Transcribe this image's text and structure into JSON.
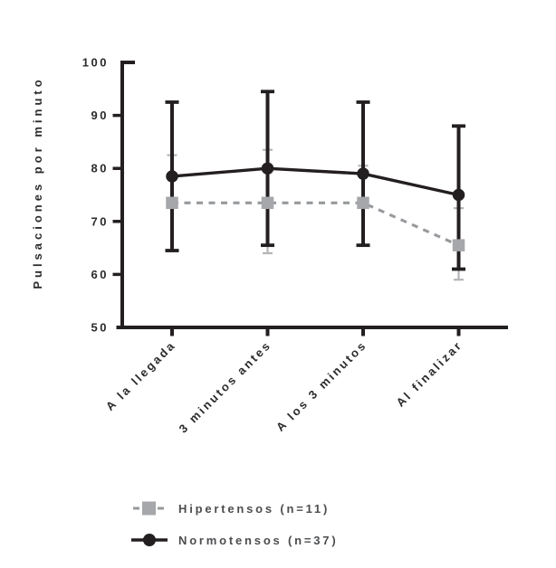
{
  "figure": {
    "background": "#ffffff"
  },
  "chart_data": {
    "type": "line",
    "title": "",
    "xlabel": "",
    "ylabel": "Pulsaciones por minuto",
    "categories": [
      "A la llegada",
      "3 minutos antes",
      "A los 3 minutos",
      "Al finalizar"
    ],
    "ylim": [
      50,
      100
    ],
    "yticks": [
      50,
      60,
      70,
      80,
      90,
      100
    ],
    "grid": false,
    "legend_position": "bottom",
    "error_bars": true,
    "series": [
      {
        "name": "Hipertensos (n=11)",
        "marker": "square",
        "line_style": "dashed",
        "color": "#a5a7aa",
        "line_color": "#97999c",
        "error_color": "#b3b5b7",
        "values": [
          73.5,
          73.5,
          73.5,
          65.5
        ],
        "error_high": [
          82.5,
          83.5,
          80.5,
          72.5
        ],
        "error_low": [
          64.5,
          64,
          65.5,
          59
        ]
      },
      {
        "name": "Normotensos (n=37)",
        "marker": "circle",
        "line_style": "solid",
        "color": "#231f20",
        "line_color": "#231f20",
        "error_color": "#231f20",
        "values": [
          78.5,
          80,
          79,
          75
        ],
        "error_high": [
          92.5,
          94.5,
          92.5,
          88
        ],
        "error_low": [
          64.5,
          65.5,
          65.5,
          61
        ]
      }
    ],
    "axis_color": "#231f20"
  }
}
